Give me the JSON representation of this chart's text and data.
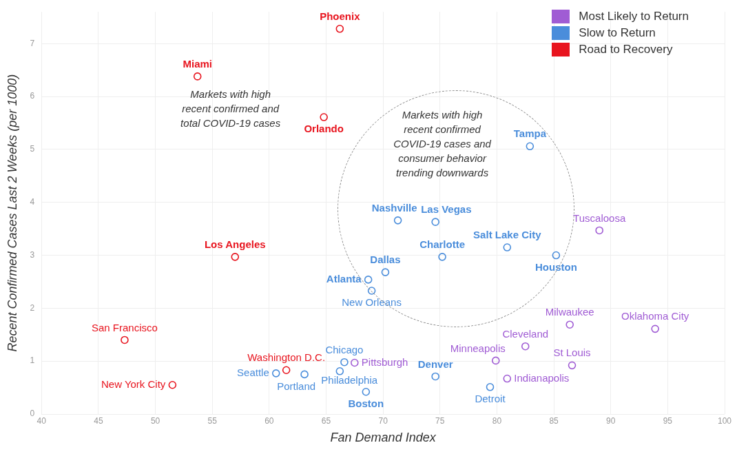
{
  "chart_data": {
    "type": "scatter",
    "xlabel": "Fan Demand Index",
    "ylabel": "Recent Confirmed Cases Last 2 Weeks (per 1000)",
    "xlim": [
      40,
      100
    ],
    "xticks": [
      40,
      45,
      50,
      55,
      60,
      65,
      70,
      75,
      80,
      85,
      90,
      95,
      100
    ],
    "ylim": [
      0,
      7.6
    ],
    "yticks": [
      0,
      1,
      2,
      3,
      4,
      5,
      6,
      7
    ],
    "grid": true,
    "legend": "top right",
    "marker": "circle",
    "annotations": [
      "Markets with high recent confirmed and total COVID-19 cases",
      "Markets with high recent confirmed COVID-19 cases and consumer behavior trending downwards"
    ],
    "series": [
      {
        "name": "Most Likely to Return",
        "color": "#a05cd4",
        "x": [
          89.0,
          86.4,
          93.9,
          82.5,
          79.9,
          86.6,
          80.9,
          67.5
        ],
        "values": [
          3.47,
          1.69,
          1.61,
          1.28,
          1.01,
          0.92,
          0.67,
          0.97
        ],
        "value_labels": [
          "Tuscaloosa",
          "Milwaukee",
          "Oklahoma City",
          "Cleveland",
          "Minneapolis",
          "St Louis",
          "Indianapolis",
          "Pittsburgh"
        ]
      },
      {
        "name": "Slow to Return",
        "color": "#4a8ddb",
        "x": [
          82.9,
          71.3,
          74.6,
          80.9,
          75.2,
          70.2,
          68.7,
          85.2,
          69.0,
          66.6,
          60.6,
          63.1,
          66.2,
          74.6,
          79.4,
          68.5
        ],
        "values": [
          5.06,
          3.66,
          3.63,
          3.15,
          2.97,
          2.68,
          2.54,
          3.0,
          2.33,
          0.98,
          0.77,
          0.75,
          0.81,
          0.71,
          0.51,
          0.42
        ],
        "value_labels": [
          "Tampa",
          "Nashville",
          "Las Vegas",
          "Salt Lake City",
          "Charlotte",
          "Dallas",
          "Atlanta",
          "Houston",
          "New Orleans",
          "Chicago",
          "Seattle",
          "Portland",
          "Philadelphia",
          "Denver",
          "Detroit",
          "Boston"
        ]
      },
      {
        "name": "Road to Recovery",
        "color": "#e8141e",
        "x": [
          66.2,
          53.7,
          64.8,
          57.0,
          47.3,
          51.5,
          61.5
        ],
        "values": [
          7.28,
          6.38,
          5.61,
          2.97,
          1.4,
          0.55,
          0.83
        ],
        "value_labels": [
          "Phoenix",
          "Miami",
          "Orlando",
          "Los Angeles",
          "San Francisco",
          "New York City",
          "Washington D.C."
        ]
      }
    ]
  }
}
